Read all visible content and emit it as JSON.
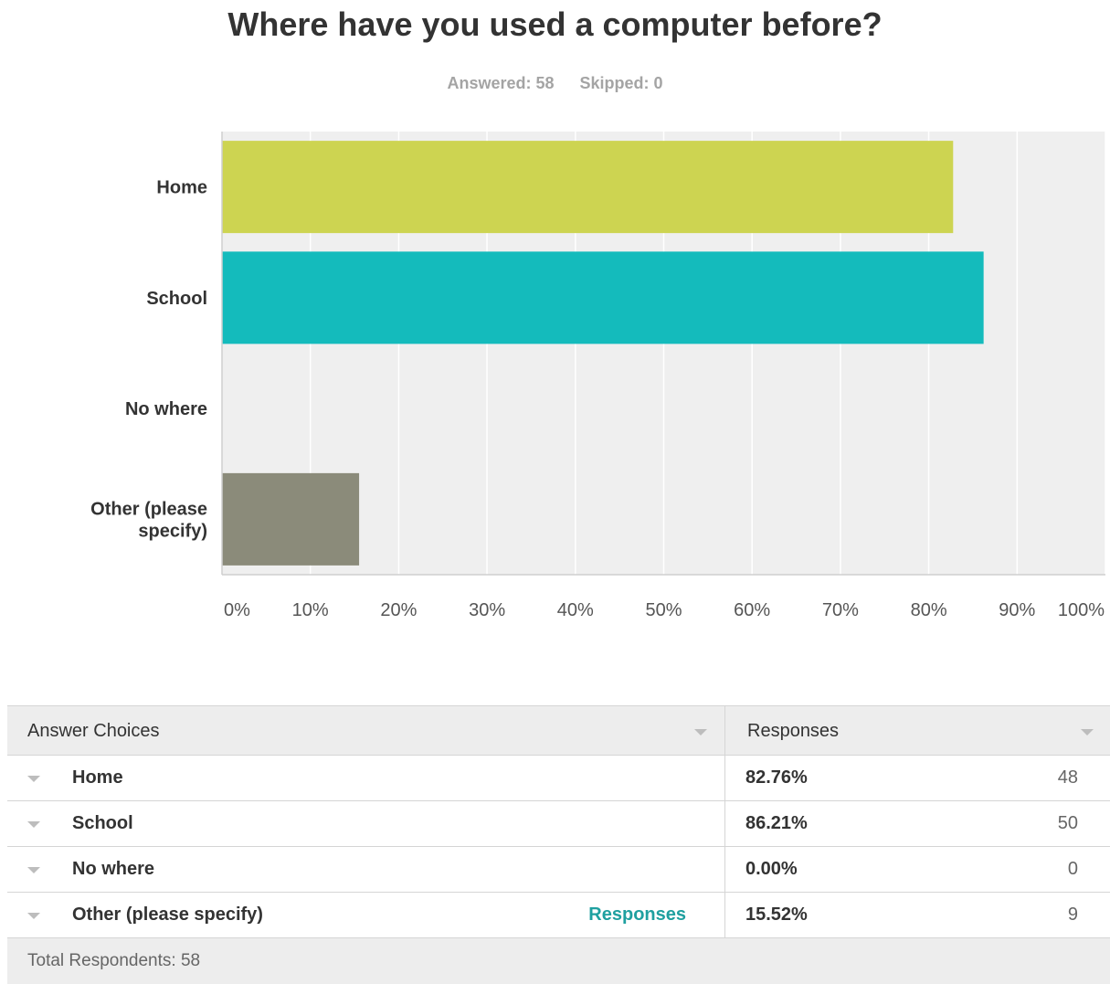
{
  "title": "Where have you used a computer before?",
  "answered": "Answered: 58",
  "skipped": "Skipped: 0",
  "chart_data": {
    "type": "bar",
    "orientation": "horizontal",
    "categories": [
      "Home",
      "School",
      "No where",
      "Other (please specify)"
    ],
    "category_lines": [
      [
        "Home"
      ],
      [
        "School"
      ],
      [
        "No where"
      ],
      [
        "Other (please",
        "specify)"
      ]
    ],
    "values": [
      82.76,
      86.21,
      0.0,
      15.52
    ],
    "colors": [
      "#cdd451",
      "#14bbbc",
      "#8f8f7b",
      "#8b8b7a"
    ],
    "xticks": [
      "0%",
      "10%",
      "20%",
      "30%",
      "40%",
      "50%",
      "60%",
      "70%",
      "80%",
      "90%",
      "100%"
    ],
    "xlim": [
      0,
      100
    ],
    "grid": true,
    "background": "#efefef"
  },
  "table": {
    "header_choices": "Answer Choices",
    "header_responses": "Responses",
    "rows": [
      {
        "choice": "Home",
        "link": "",
        "pct": "82.76%",
        "count": "48"
      },
      {
        "choice": "School",
        "link": "",
        "pct": "86.21%",
        "count": "50"
      },
      {
        "choice": "No where",
        "link": "",
        "pct": "0.00%",
        "count": "0"
      },
      {
        "choice": "Other (please specify)",
        "link": "Responses",
        "pct": "15.52%",
        "count": "9"
      }
    ],
    "total": "Total Respondents: 58"
  }
}
